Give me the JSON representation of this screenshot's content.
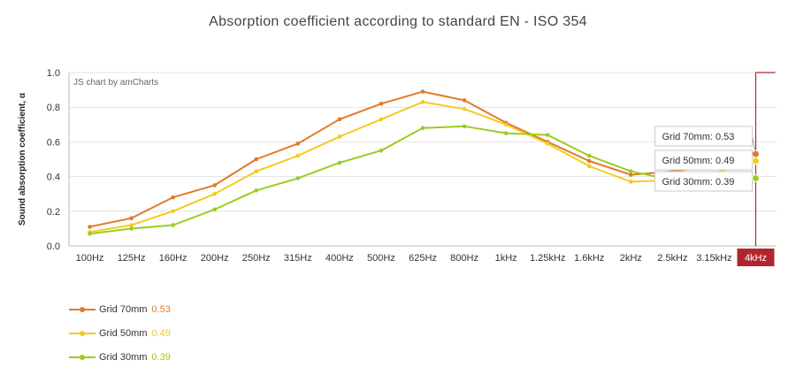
{
  "chart_data": {
    "type": "line",
    "title": "Absorption coefficient according to standard EN - ISO 354",
    "ylabel": "Sound absorption coefficient, α",
    "xlabel": "",
    "credit": "JS chart by amCharts",
    "ylim": [
      0,
      1.0
    ],
    "yticks": [
      "0.0",
      "0.2",
      "0.4",
      "0.6",
      "0.8",
      "1.0"
    ],
    "grid": true,
    "categories": [
      "100Hz",
      "125Hz",
      "160Hz",
      "200Hz",
      "250Hz",
      "315Hz",
      "400Hz",
      "500Hz",
      "625Hz",
      "800Hz",
      "1kHz",
      "1.25kHz",
      "1.6kHz",
      "2kHz",
      "2.5kHz",
      "3.15kHz",
      "4kHz"
    ],
    "cursor_category": "4kHz",
    "series": [
      {
        "name": "Grid 70mm",
        "color": "#e07b29",
        "values": [
          0.11,
          0.16,
          0.28,
          0.35,
          0.5,
          0.59,
          0.73,
          0.82,
          0.89,
          0.84,
          0.71,
          0.6,
          0.49,
          0.41,
          0.43,
          0.46,
          0.53
        ],
        "current": "0.53",
        "tooltip": "Grid 70mm: 0.53"
      },
      {
        "name": "Grid 50mm",
        "color": "#f2cc1f",
        "values": [
          0.08,
          0.12,
          0.2,
          0.3,
          0.43,
          0.52,
          0.63,
          0.73,
          0.83,
          0.79,
          0.7,
          0.59,
          0.46,
          0.37,
          0.38,
          0.42,
          0.49
        ],
        "current": "0.49",
        "tooltip": "Grid 50mm: 0.49"
      },
      {
        "name": "Grid 30mm",
        "color": "#9bcc21",
        "values": [
          0.07,
          0.1,
          0.12,
          0.21,
          0.32,
          0.39,
          0.48,
          0.55,
          0.68,
          0.69,
          0.65,
          0.64,
          0.52,
          0.43,
          0.38,
          0.36,
          0.39
        ],
        "current": "0.39",
        "tooltip": "Grid 30mm: 0.39"
      }
    ]
  }
}
